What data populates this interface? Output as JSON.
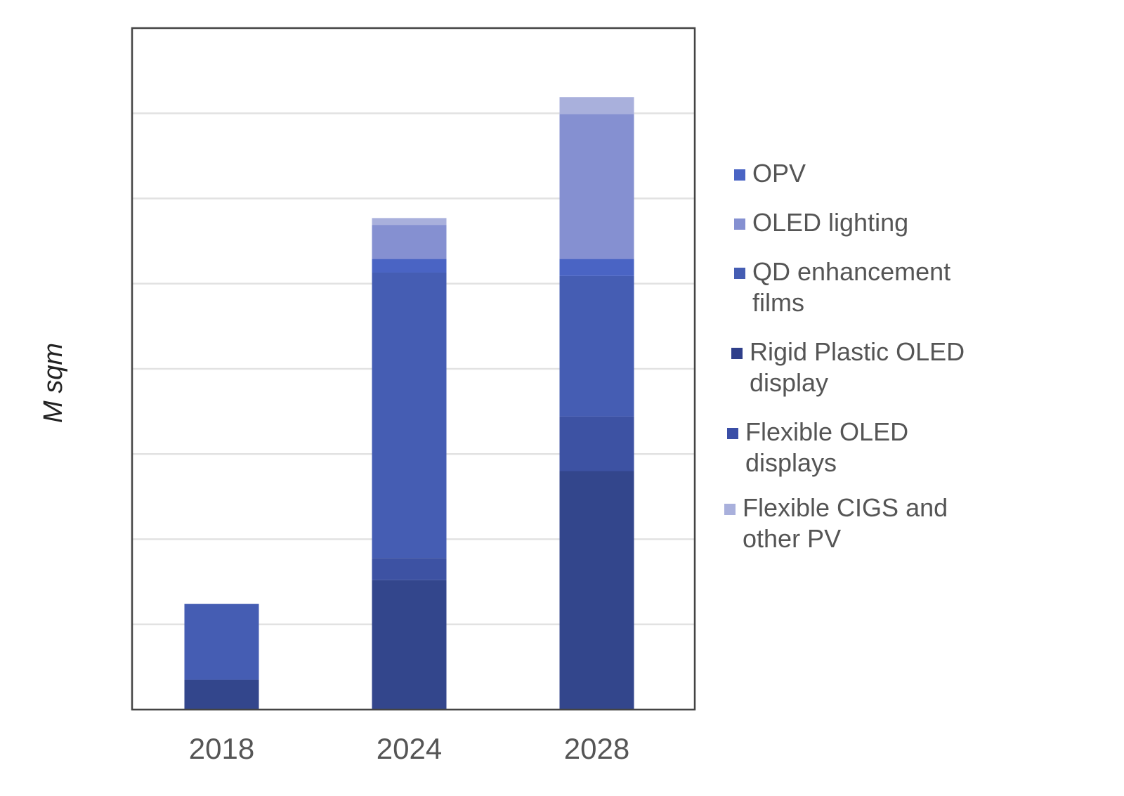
{
  "chart_data": {
    "type": "bar",
    "stacked": true,
    "title": "",
    "xlabel": "",
    "ylabel": "M sqm",
    "ylim": [
      0,
      8
    ],
    "y_tick_labels_shown": false,
    "grid": true,
    "legend_position": "right",
    "categories": [
      "2018",
      "2024",
      "2028"
    ],
    "series": [
      {
        "name": "Rigid Plastic OLED display",
        "color": "#33468c",
        "values": [
          0.35,
          1.52,
          2.8
        ]
      },
      {
        "name": "Flexible OLED displays",
        "color": "#3d52a3",
        "values": [
          0.0,
          0.26,
          0.64
        ]
      },
      {
        "name": "QD enhancement films",
        "color": "#455db3",
        "values": [
          0.89,
          3.35,
          1.65
        ]
      },
      {
        "name": "OPV",
        "color": "#4a64c4",
        "values": [
          0.0,
          0.16,
          0.2
        ]
      },
      {
        "name": "OLED lighting",
        "color": "#8590d1",
        "values": [
          0.0,
          0.4,
          1.7
        ]
      },
      {
        "name": "Flexible CIGS and other PV",
        "color": "#a9b0dc",
        "values": [
          0.0,
          0.08,
          0.2
        ]
      }
    ]
  },
  "legend": {
    "items": [
      {
        "line1": "OPV",
        "line2": "",
        "color": "#4a64c4"
      },
      {
        "line1": "OLED lighting",
        "line2": "",
        "color": "#8590d1"
      },
      {
        "line1": "QD enhancement",
        "line2": "films",
        "color": "#455db3"
      },
      {
        "line1": "Rigid Plastic OLED",
        "line2": "display",
        "color": "#2f3f8a"
      },
      {
        "line1": "Flexible OLED",
        "line2": "displays",
        "color": "#3a4ea6"
      },
      {
        "line1": "Flexible CIGS and",
        "line2": "other PV",
        "color": "#a9b0dc"
      }
    ]
  }
}
